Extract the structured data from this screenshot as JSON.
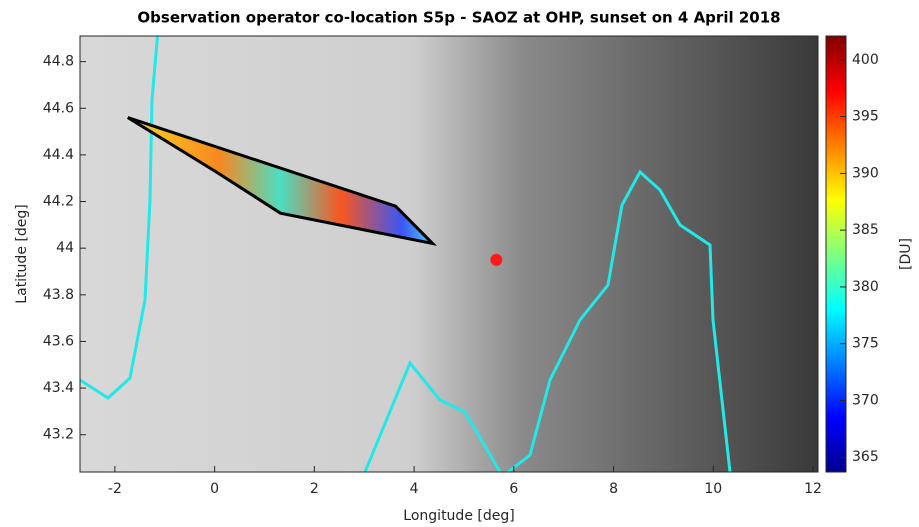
{
  "chart_data": {
    "type": "scatter",
    "title": "Observation operator co-location S5p - SAOZ at OHP, sunset on 4 April 2018",
    "x_label": "Longitude [deg]",
    "y_label": "Latitude [deg]",
    "xlim": [
      -2.7,
      12.1
    ],
    "ylim": [
      43.04,
      44.91
    ],
    "xticks": [
      -2,
      0,
      2,
      4,
      6,
      8,
      10,
      12
    ],
    "yticks": [
      43.2,
      43.4,
      43.6,
      43.8,
      44,
      44.2,
      44.4,
      44.6,
      44.8
    ],
    "series": [
      {
        "color": "#ff1a1a",
        "x": [
          5.65
        ],
        "y": [
          43.95
        ]
      }
    ],
    "colocation_polygon": {
      "color": "#000000",
      "x": [
        -1.74,
        0.01,
        1.32,
        4.37,
        3.63,
        -1.74
      ],
      "y": [
        44.56,
        44.33,
        44.15,
        44.02,
        44.18,
        44.56
      ]
    },
    "colorbar": {
      "label": "[DU]",
      "lim": [
        363.7,
        402.1
      ],
      "ticks": [
        365,
        370,
        375,
        380,
        385,
        390,
        395,
        400
      ]
    }
  }
}
